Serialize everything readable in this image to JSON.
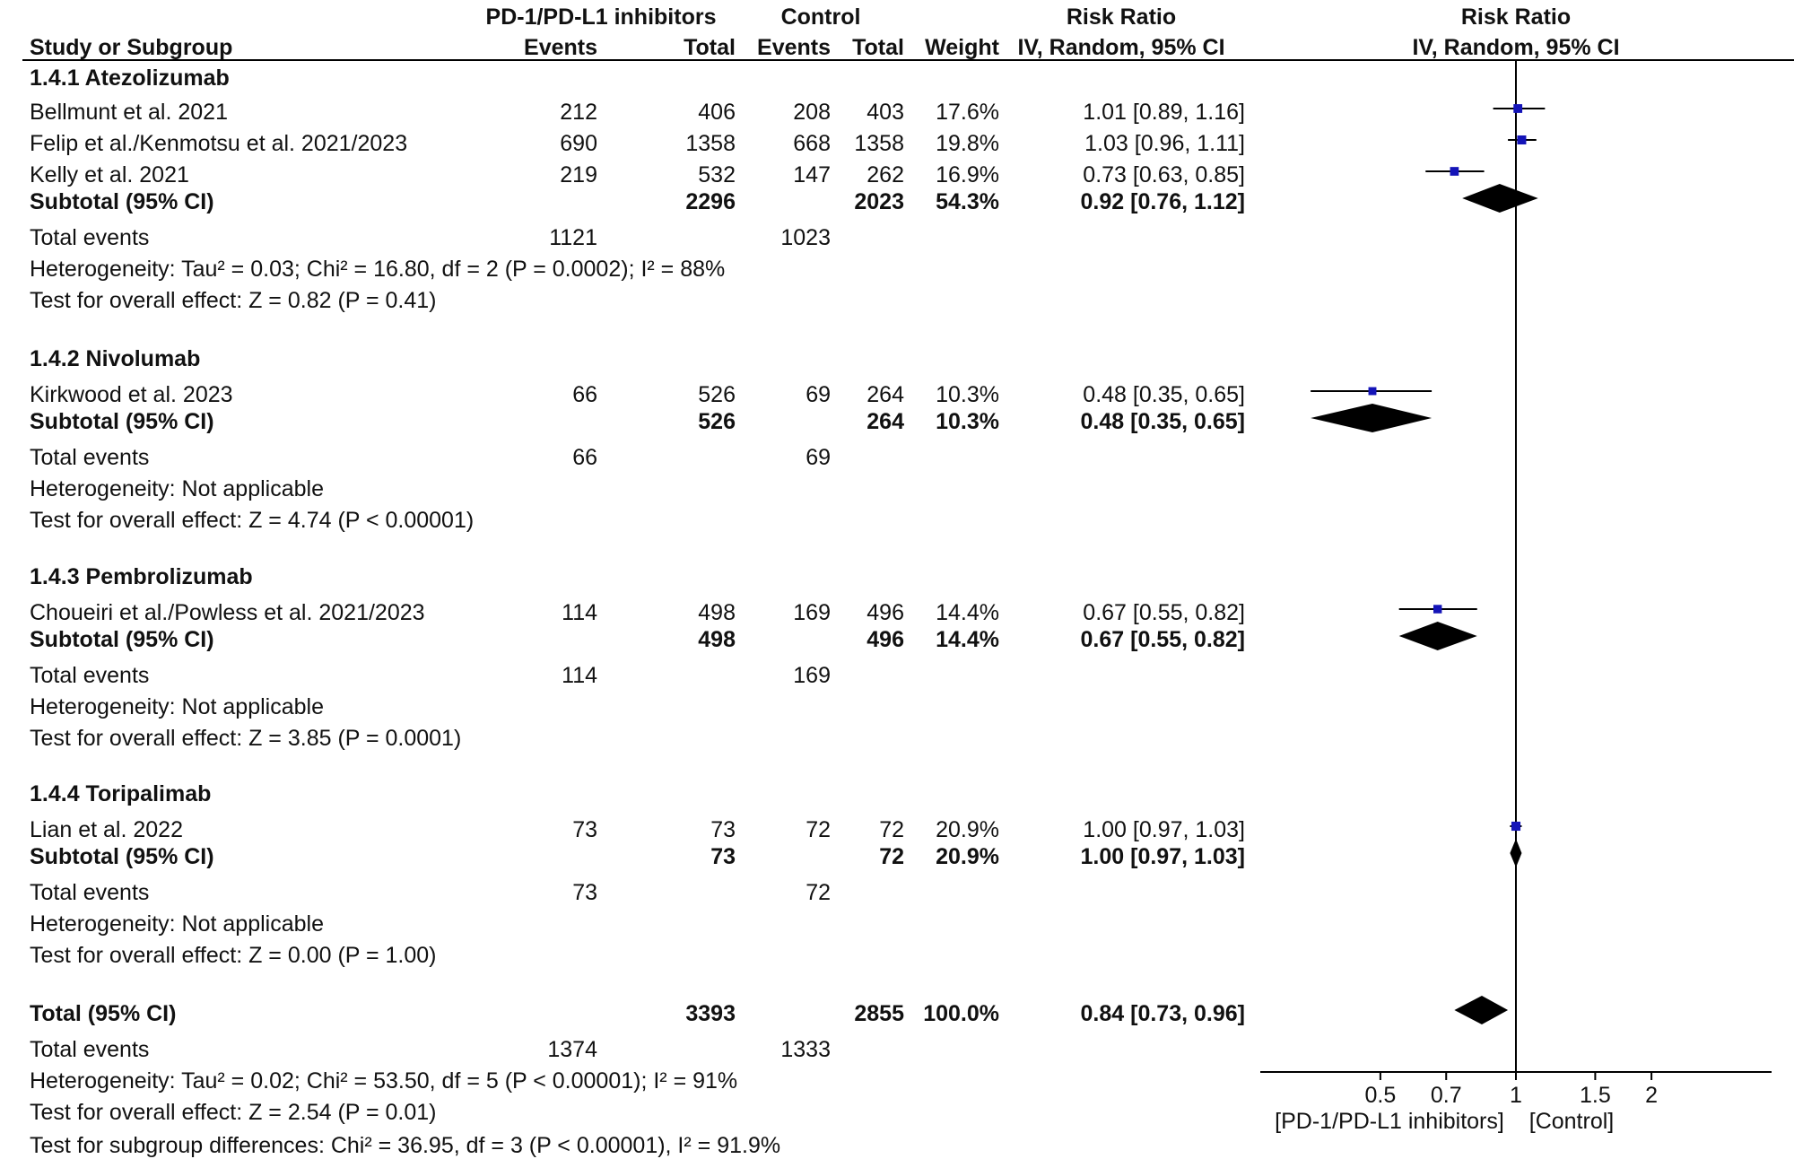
{
  "header": {
    "group1": "PD-1/PD-L1 inhibitors",
    "group2": "Control",
    "study_col": "Study or Subgroup",
    "events": "Events",
    "total": "Total",
    "weight": "Weight",
    "rr_title": "Risk Ratio",
    "rr_method": "IV, Random, 95% CI",
    "plot_title": "Risk Ratio",
    "plot_method": "IV, Random, 95% CI"
  },
  "rows": [
    {
      "kind": "group",
      "name": "1.4.1 Atezolizumab"
    },
    {
      "kind": "study",
      "name": "Bellmunt et al. 2021",
      "e1": "212",
      "n1": "406",
      "e2": "208",
      "n2": "403",
      "w": "17.6%",
      "ci": "1.01 [0.89, 1.16]"
    },
    {
      "kind": "study",
      "name": "Felip et al./Kenmotsu et al. 2021/2023",
      "e1": "690",
      "n1": "1358",
      "e2": "668",
      "n2": "1358",
      "w": "19.8%",
      "ci": "1.03 [0.96, 1.11]"
    },
    {
      "kind": "study",
      "name": "Kelly et al. 2021",
      "e1": "219",
      "n1": "532",
      "e2": "147",
      "n2": "262",
      "w": "16.9%",
      "ci": "0.73 [0.63, 0.85]"
    },
    {
      "kind": "subtotal",
      "name": "Subtotal (95% CI)",
      "n1": "2296",
      "n2": "2023",
      "w": "54.3%",
      "ci": "0.92 [0.76, 1.12]"
    },
    {
      "kind": "events",
      "name": "Total events",
      "e1": "1121",
      "e2": "1023"
    },
    {
      "kind": "text",
      "name": "Heterogeneity: Tau² = 0.03; Chi² = 16.80, df = 2 (P = 0.0002); I² = 88%"
    },
    {
      "kind": "text",
      "name": "Test for overall effect: Z = 0.82 (P = 0.41)"
    },
    {
      "kind": "group",
      "name": "1.4.2 Nivolumab"
    },
    {
      "kind": "study",
      "name": "Kirkwood et al. 2023",
      "e1": "66",
      "n1": "526",
      "e2": "69",
      "n2": "264",
      "w": "10.3%",
      "ci": "0.48 [0.35, 0.65]"
    },
    {
      "kind": "subtotal",
      "name": "Subtotal (95% CI)",
      "n1": "526",
      "n2": "264",
      "w": "10.3%",
      "ci": "0.48 [0.35, 0.65]"
    },
    {
      "kind": "events",
      "name": "Total events",
      "e1": "66",
      "e2": "69"
    },
    {
      "kind": "text",
      "name": "Heterogeneity: Not applicable"
    },
    {
      "kind": "text",
      "name": "Test for overall effect: Z = 4.74 (P < 0.00001)"
    },
    {
      "kind": "group",
      "name": "1.4.3 Pembrolizumab"
    },
    {
      "kind": "study",
      "name": "Choueiri et al./Powless et al. 2021/2023",
      "e1": "114",
      "n1": "498",
      "e2": "169",
      "n2": "496",
      "w": "14.4%",
      "ci": "0.67 [0.55, 0.82]"
    },
    {
      "kind": "subtotal",
      "name": "Subtotal (95% CI)",
      "n1": "498",
      "n2": "496",
      "w": "14.4%",
      "ci": "0.67 [0.55, 0.82]"
    },
    {
      "kind": "events",
      "name": "Total events",
      "e1": "114",
      "e2": "169"
    },
    {
      "kind": "text",
      "name": "Heterogeneity: Not applicable"
    },
    {
      "kind": "text",
      "name": "Test for overall effect: Z = 3.85 (P = 0.0001)"
    },
    {
      "kind": "group",
      "name": "1.4.4 Toripalimab"
    },
    {
      "kind": "study",
      "name": "Lian et al. 2022",
      "e1": "73",
      "n1": "73",
      "e2": "72",
      "n2": "72",
      "w": "20.9%",
      "ci": "1.00 [0.97, 1.03]"
    },
    {
      "kind": "subtotal",
      "name": "Subtotal (95% CI)",
      "n1": "73",
      "n2": "72",
      "w": "20.9%",
      "ci": "1.00 [0.97, 1.03]"
    },
    {
      "kind": "events",
      "name": "Total events",
      "e1": "73",
      "e2": "72"
    },
    {
      "kind": "text",
      "name": "Heterogeneity: Not applicable"
    },
    {
      "kind": "text",
      "name": "Test for overall effect: Z = 0.00 (P = 1.00)"
    },
    {
      "kind": "total",
      "name": "Total (95% CI)",
      "n1": "3393",
      "n2": "2855",
      "w": "100.0%",
      "ci": "0.84 [0.73, 0.96]"
    },
    {
      "kind": "events",
      "name": "Total events",
      "e1": "1374",
      "e2": "1333"
    },
    {
      "kind": "text",
      "name": "Heterogeneity: Tau² = 0.02; Chi² = 53.50, df = 5 (P < 0.00001); I² = 91%"
    },
    {
      "kind": "text",
      "name": "Test for overall effect: Z = 2.54 (P = 0.01)"
    },
    {
      "kind": "text",
      "name": "Test for subgroup differences: Chi² = 36.95, df = 3 (P < 0.00001), I² = 91.9%"
    }
  ],
  "chart_data": {
    "type": "forest",
    "scale": "log",
    "xlim": [
      0.2,
      5
    ],
    "ticks": [
      0.5,
      0.7,
      1,
      1.5,
      2
    ],
    "tick_labels": [
      "0.5",
      "0.7",
      "1",
      "1.5",
      "2"
    ],
    "favours_left": "[PD-1/PD-L1 inhibitors]",
    "favours_right": "[Control]",
    "study_color": "#1414b8",
    "studies": [
      {
        "name": "Bellmunt et al. 2021",
        "rr": 1.01,
        "lo": 0.89,
        "hi": 1.16,
        "weight": 17.6
      },
      {
        "name": "Felip et al./Kenmotsu et al. 2021/2023",
        "rr": 1.03,
        "lo": 0.96,
        "hi": 1.11,
        "weight": 19.8
      },
      {
        "name": "Kelly et al. 2021",
        "rr": 0.73,
        "lo": 0.63,
        "hi": 0.85,
        "weight": 16.9
      },
      {
        "name": "Kirkwood et al. 2023",
        "rr": 0.48,
        "lo": 0.35,
        "hi": 0.65,
        "weight": 10.3
      },
      {
        "name": "Choueiri et al./Powless et al. 2021/2023",
        "rr": 0.67,
        "lo": 0.55,
        "hi": 0.82,
        "weight": 14.4
      },
      {
        "name": "Lian et al. 2022",
        "rr": 1.0,
        "lo": 0.97,
        "hi": 1.03,
        "weight": 20.9
      }
    ],
    "diamonds": [
      {
        "name": "Subtotal 1.4.1 Atezolizumab",
        "rr": 0.92,
        "lo": 0.76,
        "hi": 1.12
      },
      {
        "name": "Subtotal 1.4.2 Nivolumab",
        "rr": 0.48,
        "lo": 0.35,
        "hi": 0.65
      },
      {
        "name": "Subtotal 1.4.3 Pembrolizumab",
        "rr": 0.67,
        "lo": 0.55,
        "hi": 0.82
      },
      {
        "name": "Subtotal 1.4.4 Toripalimab",
        "rr": 1.0,
        "lo": 0.97,
        "hi": 1.03
      },
      {
        "name": "Total (95% CI)",
        "rr": 0.84,
        "lo": 0.73,
        "hi": 0.96
      }
    ]
  }
}
